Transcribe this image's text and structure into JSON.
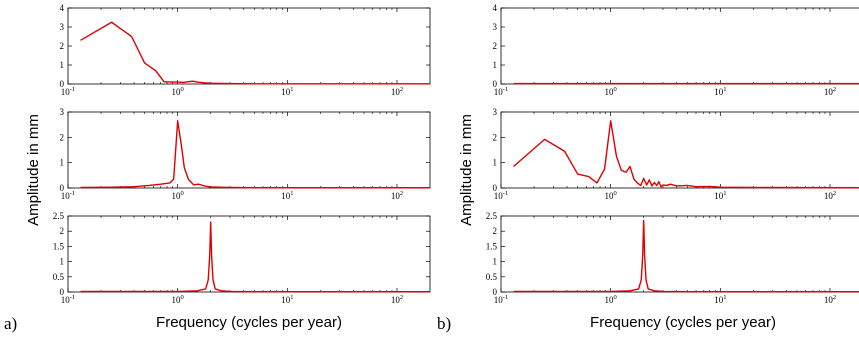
{
  "figure": {
    "ylabel": "Amplitude in mm",
    "xlabel": "Frequency (cycles per year)",
    "panel_labels": [
      "a)",
      "b)"
    ]
  },
  "style": {
    "line_color": "#e00000",
    "axis_color": "#000000"
  },
  "chart_data": [
    {
      "type": "line",
      "panel": "a",
      "row": 1,
      "xscale": "log",
      "xlim": [
        0.1,
        200
      ],
      "ylim": [
        0,
        4
      ],
      "xticks": [
        0.1,
        1,
        10,
        100
      ],
      "yticks": [
        0,
        1,
        2,
        3,
        4
      ],
      "x": [
        0.13,
        0.25,
        0.38,
        0.5,
        0.63,
        0.75,
        0.88,
        1.0,
        1.13,
        1.25,
        1.38,
        1.5,
        1.75,
        2.0,
        2.5,
        3,
        5,
        10,
        50,
        200
      ],
      "y": [
        2.3,
        3.25,
        2.5,
        1.1,
        0.7,
        0.12,
        0.1,
        0.1,
        0.08,
        0.12,
        0.15,
        0.1,
        0.06,
        0.04,
        0.03,
        0.02,
        0.01,
        0.01,
        0.01,
        0.01
      ]
    },
    {
      "type": "line",
      "panel": "a",
      "row": 2,
      "xscale": "log",
      "xlim": [
        0.1,
        200
      ],
      "ylim": [
        0,
        3
      ],
      "xticks": [
        0.1,
        1,
        10,
        100
      ],
      "yticks": [
        0,
        1,
        2,
        3
      ],
      "x": [
        0.13,
        0.25,
        0.4,
        0.55,
        0.7,
        0.85,
        0.92,
        1.0,
        1.08,
        1.15,
        1.25,
        1.4,
        1.55,
        1.75,
        2.0,
        3,
        5,
        10,
        50,
        200
      ],
      "y": [
        0.02,
        0.03,
        0.05,
        0.1,
        0.15,
        0.2,
        0.35,
        2.65,
        1.7,
        0.8,
        0.35,
        0.12,
        0.15,
        0.08,
        0.04,
        0.02,
        0.01,
        0.01,
        0.01,
        0.01
      ]
    },
    {
      "type": "line",
      "panel": "a",
      "row": 3,
      "xscale": "log",
      "xlim": [
        0.1,
        200
      ],
      "ylim": [
        0,
        2.5
      ],
      "xticks": [
        0.1,
        1,
        10,
        100
      ],
      "yticks": [
        0,
        0.5,
        1,
        1.5,
        2,
        2.5
      ],
      "x": [
        0.13,
        0.5,
        1.0,
        1.5,
        1.8,
        1.9,
        1.96,
        2.0,
        2.04,
        2.1,
        2.2,
        2.5,
        3,
        5,
        10,
        50,
        200
      ],
      "y": [
        0.02,
        0.02,
        0.02,
        0.04,
        0.1,
        0.4,
        1.2,
        2.3,
        1.2,
        0.4,
        0.1,
        0.04,
        0.02,
        0.01,
        0.01,
        0.01,
        0.01
      ]
    },
    {
      "type": "line",
      "panel": "b",
      "row": 1,
      "xscale": "log",
      "xlim": [
        0.1,
        200
      ],
      "ylim": [
        0,
        4
      ],
      "xticks": [
        0.1,
        1,
        10,
        100
      ],
      "yticks": [
        0,
        1,
        2,
        3,
        4
      ],
      "x": [
        0.13,
        1,
        10,
        100,
        200
      ],
      "y": [
        0.02,
        0.02,
        0.02,
        0.02,
        0.02
      ]
    },
    {
      "type": "line",
      "panel": "b",
      "row": 2,
      "xscale": "log",
      "xlim": [
        0.1,
        200
      ],
      "ylim": [
        0,
        3
      ],
      "xticks": [
        0.1,
        1,
        10,
        100
      ],
      "yticks": [
        0,
        1,
        2,
        3
      ],
      "x": [
        0.13,
        0.25,
        0.38,
        0.5,
        0.63,
        0.75,
        0.88,
        1.0,
        1.13,
        1.25,
        1.38,
        1.5,
        1.63,
        1.75,
        1.88,
        2.0,
        2.13,
        2.25,
        2.38,
        2.5,
        2.63,
        2.75,
        2.88,
        3.0,
        3.25,
        3.5,
        4,
        5,
        6,
        8,
        10,
        20,
        200
      ],
      "y": [
        0.85,
        1.92,
        1.45,
        0.55,
        0.45,
        0.2,
        0.75,
        2.65,
        1.25,
        0.7,
        0.62,
        0.85,
        0.35,
        0.2,
        0.1,
        0.38,
        0.12,
        0.32,
        0.08,
        0.22,
        0.1,
        0.25,
        0.05,
        0.12,
        0.1,
        0.15,
        0.08,
        0.1,
        0.05,
        0.06,
        0.03,
        0.02,
        0.01
      ]
    },
    {
      "type": "line",
      "panel": "b",
      "row": 3,
      "xscale": "log",
      "xlim": [
        0.1,
        200
      ],
      "ylim": [
        0,
        2.5
      ],
      "xticks": [
        0.1,
        1,
        10,
        100
      ],
      "yticks": [
        0,
        0.5,
        1,
        1.5,
        2,
        2.5
      ],
      "x": [
        0.13,
        0.5,
        1.0,
        1.5,
        1.8,
        1.9,
        1.96,
        2.0,
        2.04,
        2.1,
        2.2,
        2.5,
        3,
        5,
        10,
        50,
        200
      ],
      "y": [
        0.02,
        0.02,
        0.02,
        0.04,
        0.1,
        0.4,
        1.2,
        2.35,
        1.2,
        0.4,
        0.1,
        0.04,
        0.02,
        0.01,
        0.01,
        0.01,
        0.01
      ]
    }
  ]
}
